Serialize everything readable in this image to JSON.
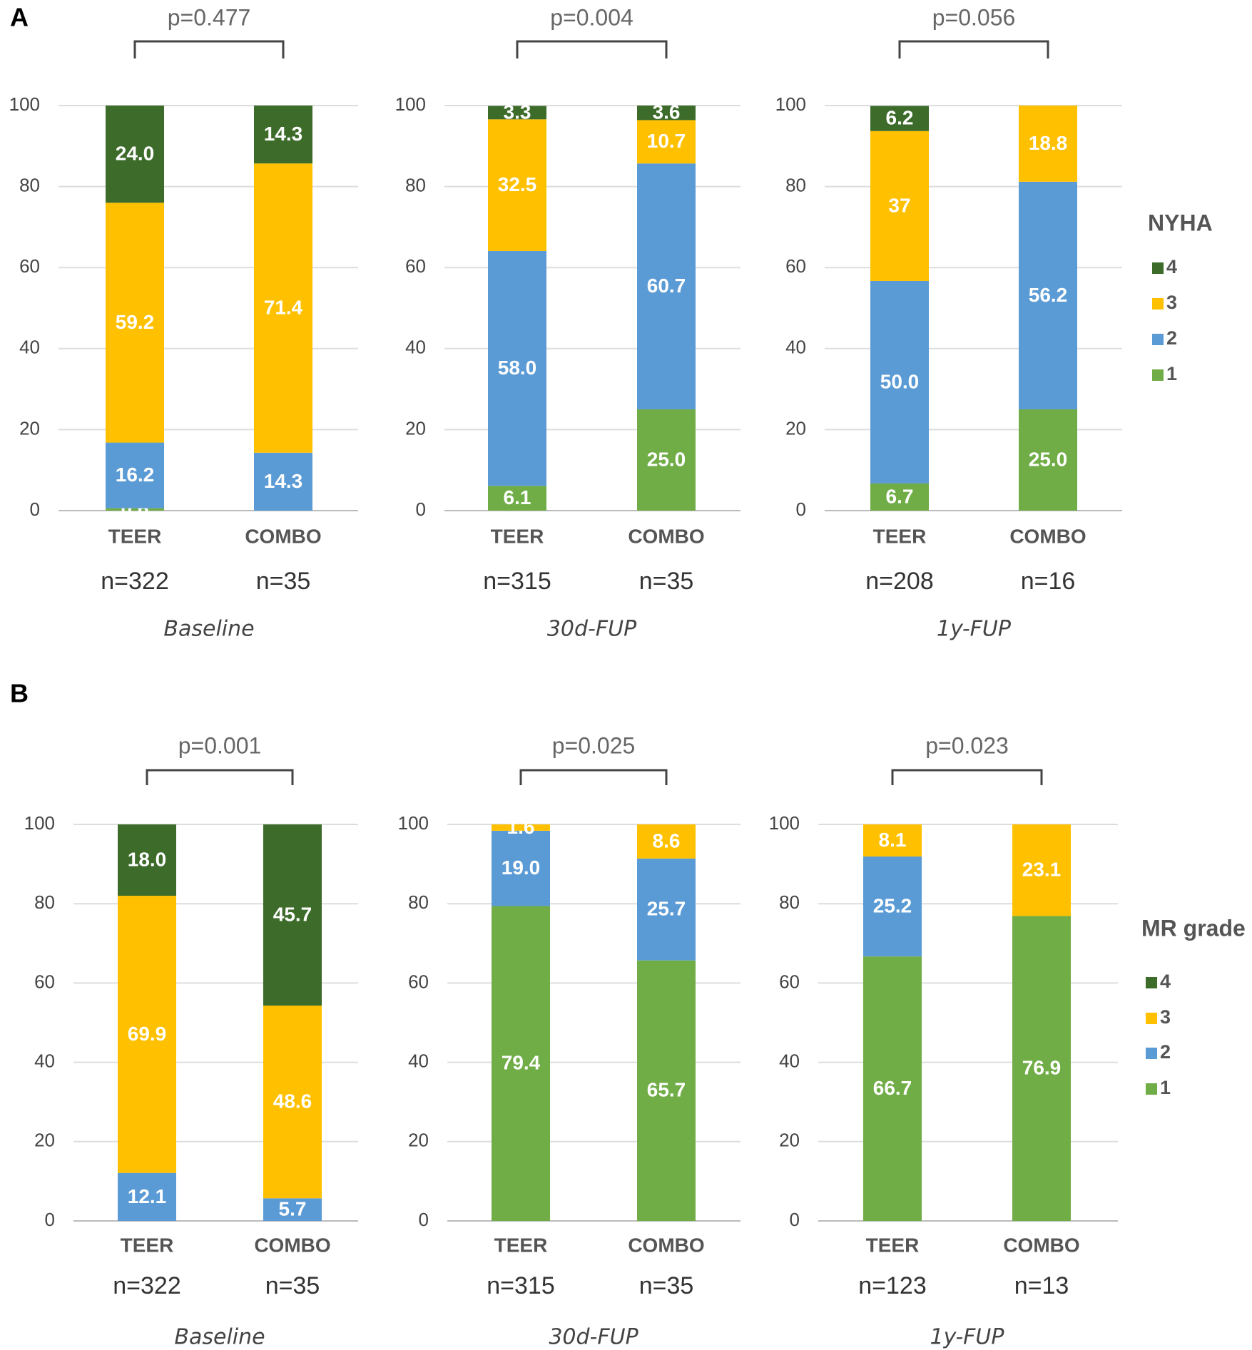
{
  "chart_data": [
    {
      "type": "bar",
      "stacked": true,
      "panel_label": "A",
      "annotation": "p=0.477",
      "xlabel": "Baseline",
      "categories": [
        "TEER",
        "COMBO"
      ],
      "category_notes": [
        "n=322",
        "n=35"
      ],
      "ylim": [
        0,
        100
      ],
      "yticks": [
        0,
        20,
        40,
        60,
        80,
        100
      ],
      "grid": true,
      "series": [
        {
          "color": "#70ad47",
          "values": [
            0.6,
            null
          ],
          "value_labels": [
            "0.6",
            null
          ]
        },
        {
          "color": "#5b9bd5",
          "values": [
            16.2,
            14.3
          ],
          "value_labels": [
            "16.2",
            "14.3"
          ]
        },
        {
          "color": "#ffc000",
          "values": [
            59.2,
            71.4
          ],
          "value_labels": [
            "59.2",
            "71.4"
          ]
        },
        {
          "color": "#3d6b2a",
          "values": [
            24.0,
            14.3
          ],
          "value_labels": [
            "24.0",
            "14.3"
          ]
        }
      ]
    },
    {
      "type": "bar",
      "stacked": true,
      "annotation": "p=0.004",
      "xlabel": "30d-FUP",
      "categories": [
        "TEER",
        "COMBO"
      ],
      "category_notes": [
        "n=315",
        "n=35"
      ],
      "ylim": [
        0,
        100
      ],
      "yticks": [
        0,
        20,
        40,
        60,
        80,
        100
      ],
      "grid": true,
      "series": [
        {
          "color": "#70ad47",
          "values": [
            6.1,
            25.0
          ],
          "value_labels": [
            "6.1",
            "25.0"
          ]
        },
        {
          "color": "#5b9bd5",
          "values": [
            58.0,
            60.7
          ],
          "value_labels": [
            "58.0",
            "60.7"
          ]
        },
        {
          "color": "#ffc000",
          "values": [
            32.5,
            10.7
          ],
          "value_labels": [
            "32.5",
            "10.7"
          ]
        },
        {
          "color": "#3d6b2a",
          "values": [
            3.3,
            3.6
          ],
          "value_labels": [
            "3.3",
            "3.6"
          ]
        }
      ]
    },
    {
      "type": "bar",
      "stacked": true,
      "annotation": "p=0.056",
      "xlabel": "1y-FUP",
      "legend_title": "NYHA",
      "categories": [
        "TEER",
        "COMBO"
      ],
      "category_notes": [
        "n=208",
        "n=16"
      ],
      "ylim": [
        0,
        100
      ],
      "yticks": [
        0,
        20,
        40,
        60,
        80,
        100
      ],
      "grid": true,
      "series": [
        {
          "name": "1",
          "color": "#70ad47",
          "values": [
            6.7,
            25.0
          ],
          "value_labels": [
            "6.7",
            "25.0"
          ]
        },
        {
          "name": "2",
          "color": "#5b9bd5",
          "values": [
            50.0,
            56.2
          ],
          "value_labels": [
            "50.0",
            "56.2"
          ]
        },
        {
          "name": "3",
          "color": "#ffc000",
          "values": [
            37,
            18.8
          ],
          "value_labels": [
            "37",
            "18.8"
          ]
        },
        {
          "name": "4",
          "color": "#3d6b2a",
          "values": [
            6.2,
            null
          ],
          "value_labels": [
            "6.2",
            null
          ]
        }
      ]
    },
    {
      "type": "bar",
      "stacked": true,
      "panel_label": "B",
      "annotation": "p=0.001",
      "xlabel": "Baseline",
      "categories": [
        "TEER",
        "COMBO"
      ],
      "category_notes": [
        "n=322",
        "n=35"
      ],
      "ylim": [
        0,
        100
      ],
      "yticks": [
        0,
        20,
        40,
        60,
        80,
        100
      ],
      "grid": true,
      "series": [
        {
          "color": "#70ad47",
          "values": [
            null,
            null
          ],
          "value_labels": [
            null,
            null
          ]
        },
        {
          "color": "#5b9bd5",
          "values": [
            12.1,
            5.7
          ],
          "value_labels": [
            "12.1",
            "5.7"
          ]
        },
        {
          "color": "#ffc000",
          "values": [
            69.9,
            48.6
          ],
          "value_labels": [
            "69.9",
            "48.6"
          ]
        },
        {
          "color": "#3d6b2a",
          "values": [
            18.0,
            45.7
          ],
          "value_labels": [
            "18.0",
            "45.7"
          ]
        }
      ]
    },
    {
      "type": "bar",
      "stacked": true,
      "annotation": "p=0.025",
      "xlabel": "30d-FUP",
      "categories": [
        "TEER",
        "COMBO"
      ],
      "category_notes": [
        "n=315",
        "n=35"
      ],
      "ylim": [
        0,
        100
      ],
      "yticks": [
        0,
        20,
        40,
        60,
        80,
        100
      ],
      "grid": true,
      "series": [
        {
          "color": "#70ad47",
          "values": [
            79.4,
            65.7
          ],
          "value_labels": [
            "79.4",
            "65.7"
          ]
        },
        {
          "color": "#5b9bd5",
          "values": [
            19.0,
            25.7
          ],
          "value_labels": [
            "19.0",
            "25.7"
          ]
        },
        {
          "color": "#ffc000",
          "values": [
            1.6,
            8.6
          ],
          "value_labels": [
            "1.6",
            "8.6"
          ]
        },
        {
          "color": "#3d6b2a",
          "values": [
            null,
            null
          ],
          "value_labels": [
            null,
            null
          ]
        }
      ]
    },
    {
      "type": "bar",
      "stacked": true,
      "annotation": "p=0.023",
      "xlabel": "1y-FUP",
      "legend_title": "MR grade",
      "categories": [
        "TEER",
        "COMBO"
      ],
      "category_notes": [
        "n=123",
        "n=13"
      ],
      "ylim": [
        0,
        100
      ],
      "yticks": [
        0,
        20,
        40,
        60,
        80,
        100
      ],
      "grid": true,
      "series": [
        {
          "name": "1",
          "color": "#70ad47",
          "values": [
            66.7,
            76.9
          ],
          "value_labels": [
            "66.7",
            "76.9"
          ]
        },
        {
          "name": "2",
          "color": "#5b9bd5",
          "values": [
            25.2,
            null
          ],
          "value_labels": [
            "25.2",
            null
          ]
        },
        {
          "name": "3",
          "color": "#ffc000",
          "values": [
            8.1,
            23.1
          ],
          "value_labels": [
            "8.1",
            "23.1"
          ]
        },
        {
          "name": "4",
          "color": "#3d6b2a",
          "values": [
            null,
            null
          ],
          "value_labels": [
            null,
            null
          ]
        }
      ]
    }
  ]
}
